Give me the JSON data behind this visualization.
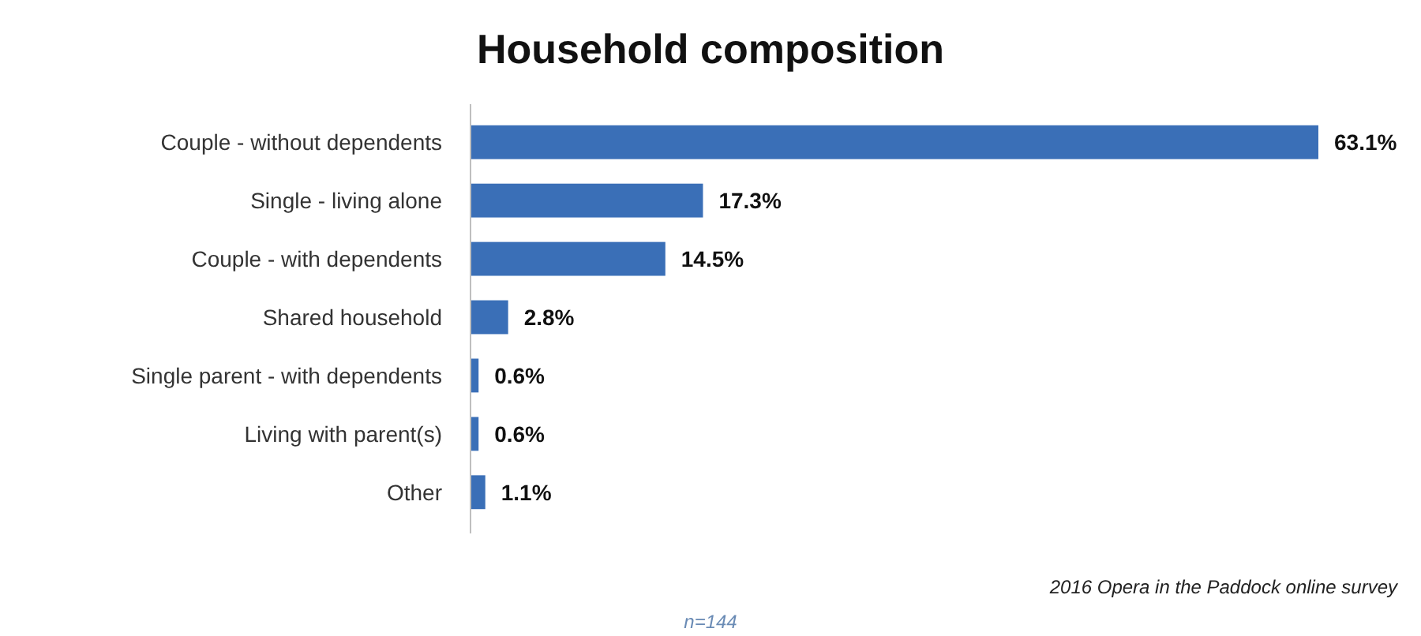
{
  "chart_data": {
    "type": "bar",
    "orientation": "horizontal",
    "title": "Household composition",
    "categories": [
      "Couple - without dependents",
      "Single - living alone",
      "Couple - with dependents",
      "Shared household",
      "Single parent - with dependents",
      "Living with parent(s)",
      "Other"
    ],
    "values": [
      63.1,
      17.3,
      14.5,
      2.8,
      0.6,
      0.6,
      1.1
    ],
    "value_labels": [
      "63.1%",
      "17.3%",
      "14.5%",
      "2.8%",
      "0.6%",
      "0.6%",
      "1.1%"
    ],
    "color": "#3a6fb7",
    "annotations": [
      "2016 Opera in the Paddock online survey",
      "n=144"
    ]
  }
}
